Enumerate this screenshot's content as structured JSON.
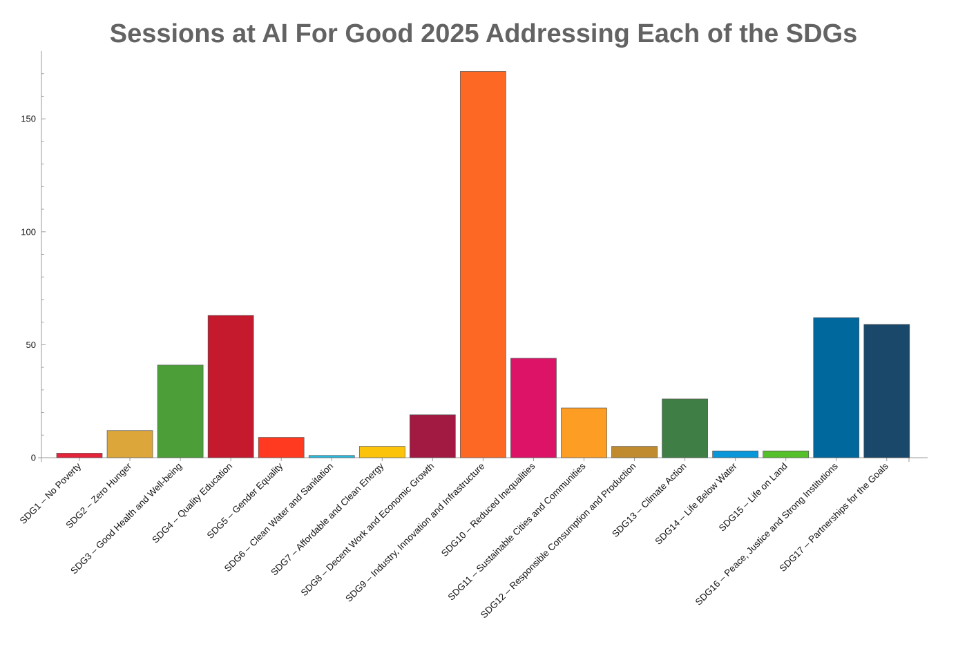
{
  "chart_data": {
    "type": "bar",
    "title": "Sessions at AI For Good 2025 Addressing Each of the SDGs",
    "xlabel": "",
    "ylabel": "",
    "ylim": [
      0,
      180
    ],
    "y_ticks": [
      0,
      50,
      100,
      150
    ],
    "grid": false,
    "categories": [
      "SDG1 – No Poverty",
      "SDG2 – Zero Hunger",
      "SDG3 – Good Health and Well-being",
      "SDG4 – Quality Education",
      "SDG5 – Gender Equality",
      "SDG6 – Clean Water and Sanitation",
      "SDG7 – Affordable and Clean Energy",
      "SDG8 – Decent Work and Economic Growth",
      "SDG9 – Industry, Innovation and Infrastructure",
      "SDG10 – Reduced Inequalities",
      "SDG11 – Sustainable Cities and Communities",
      "SDG12 – Responsible Consumption and Production",
      "SDG13 – Climate Action",
      "SDG14 – Life Below Water",
      "SDG15 – Life on Land",
      "SDG16 – Peace, Justice and Strong Institutions",
      "SDG17 – Partnerships for the Goals"
    ],
    "values": [
      2,
      12,
      41,
      63,
      9,
      1,
      5,
      19,
      171,
      44,
      22,
      5,
      26,
      3,
      3,
      62,
      59
    ],
    "colors": [
      "#E5243B",
      "#DDA63A",
      "#4C9F38",
      "#C5192D",
      "#FF3A21",
      "#26BDE2",
      "#FCC30B",
      "#A21942",
      "#FD6925",
      "#DD1367",
      "#FD9D24",
      "#BF8B2E",
      "#3F7E44",
      "#0A97D9",
      "#56C02B",
      "#00689D",
      "#19486A"
    ]
  }
}
